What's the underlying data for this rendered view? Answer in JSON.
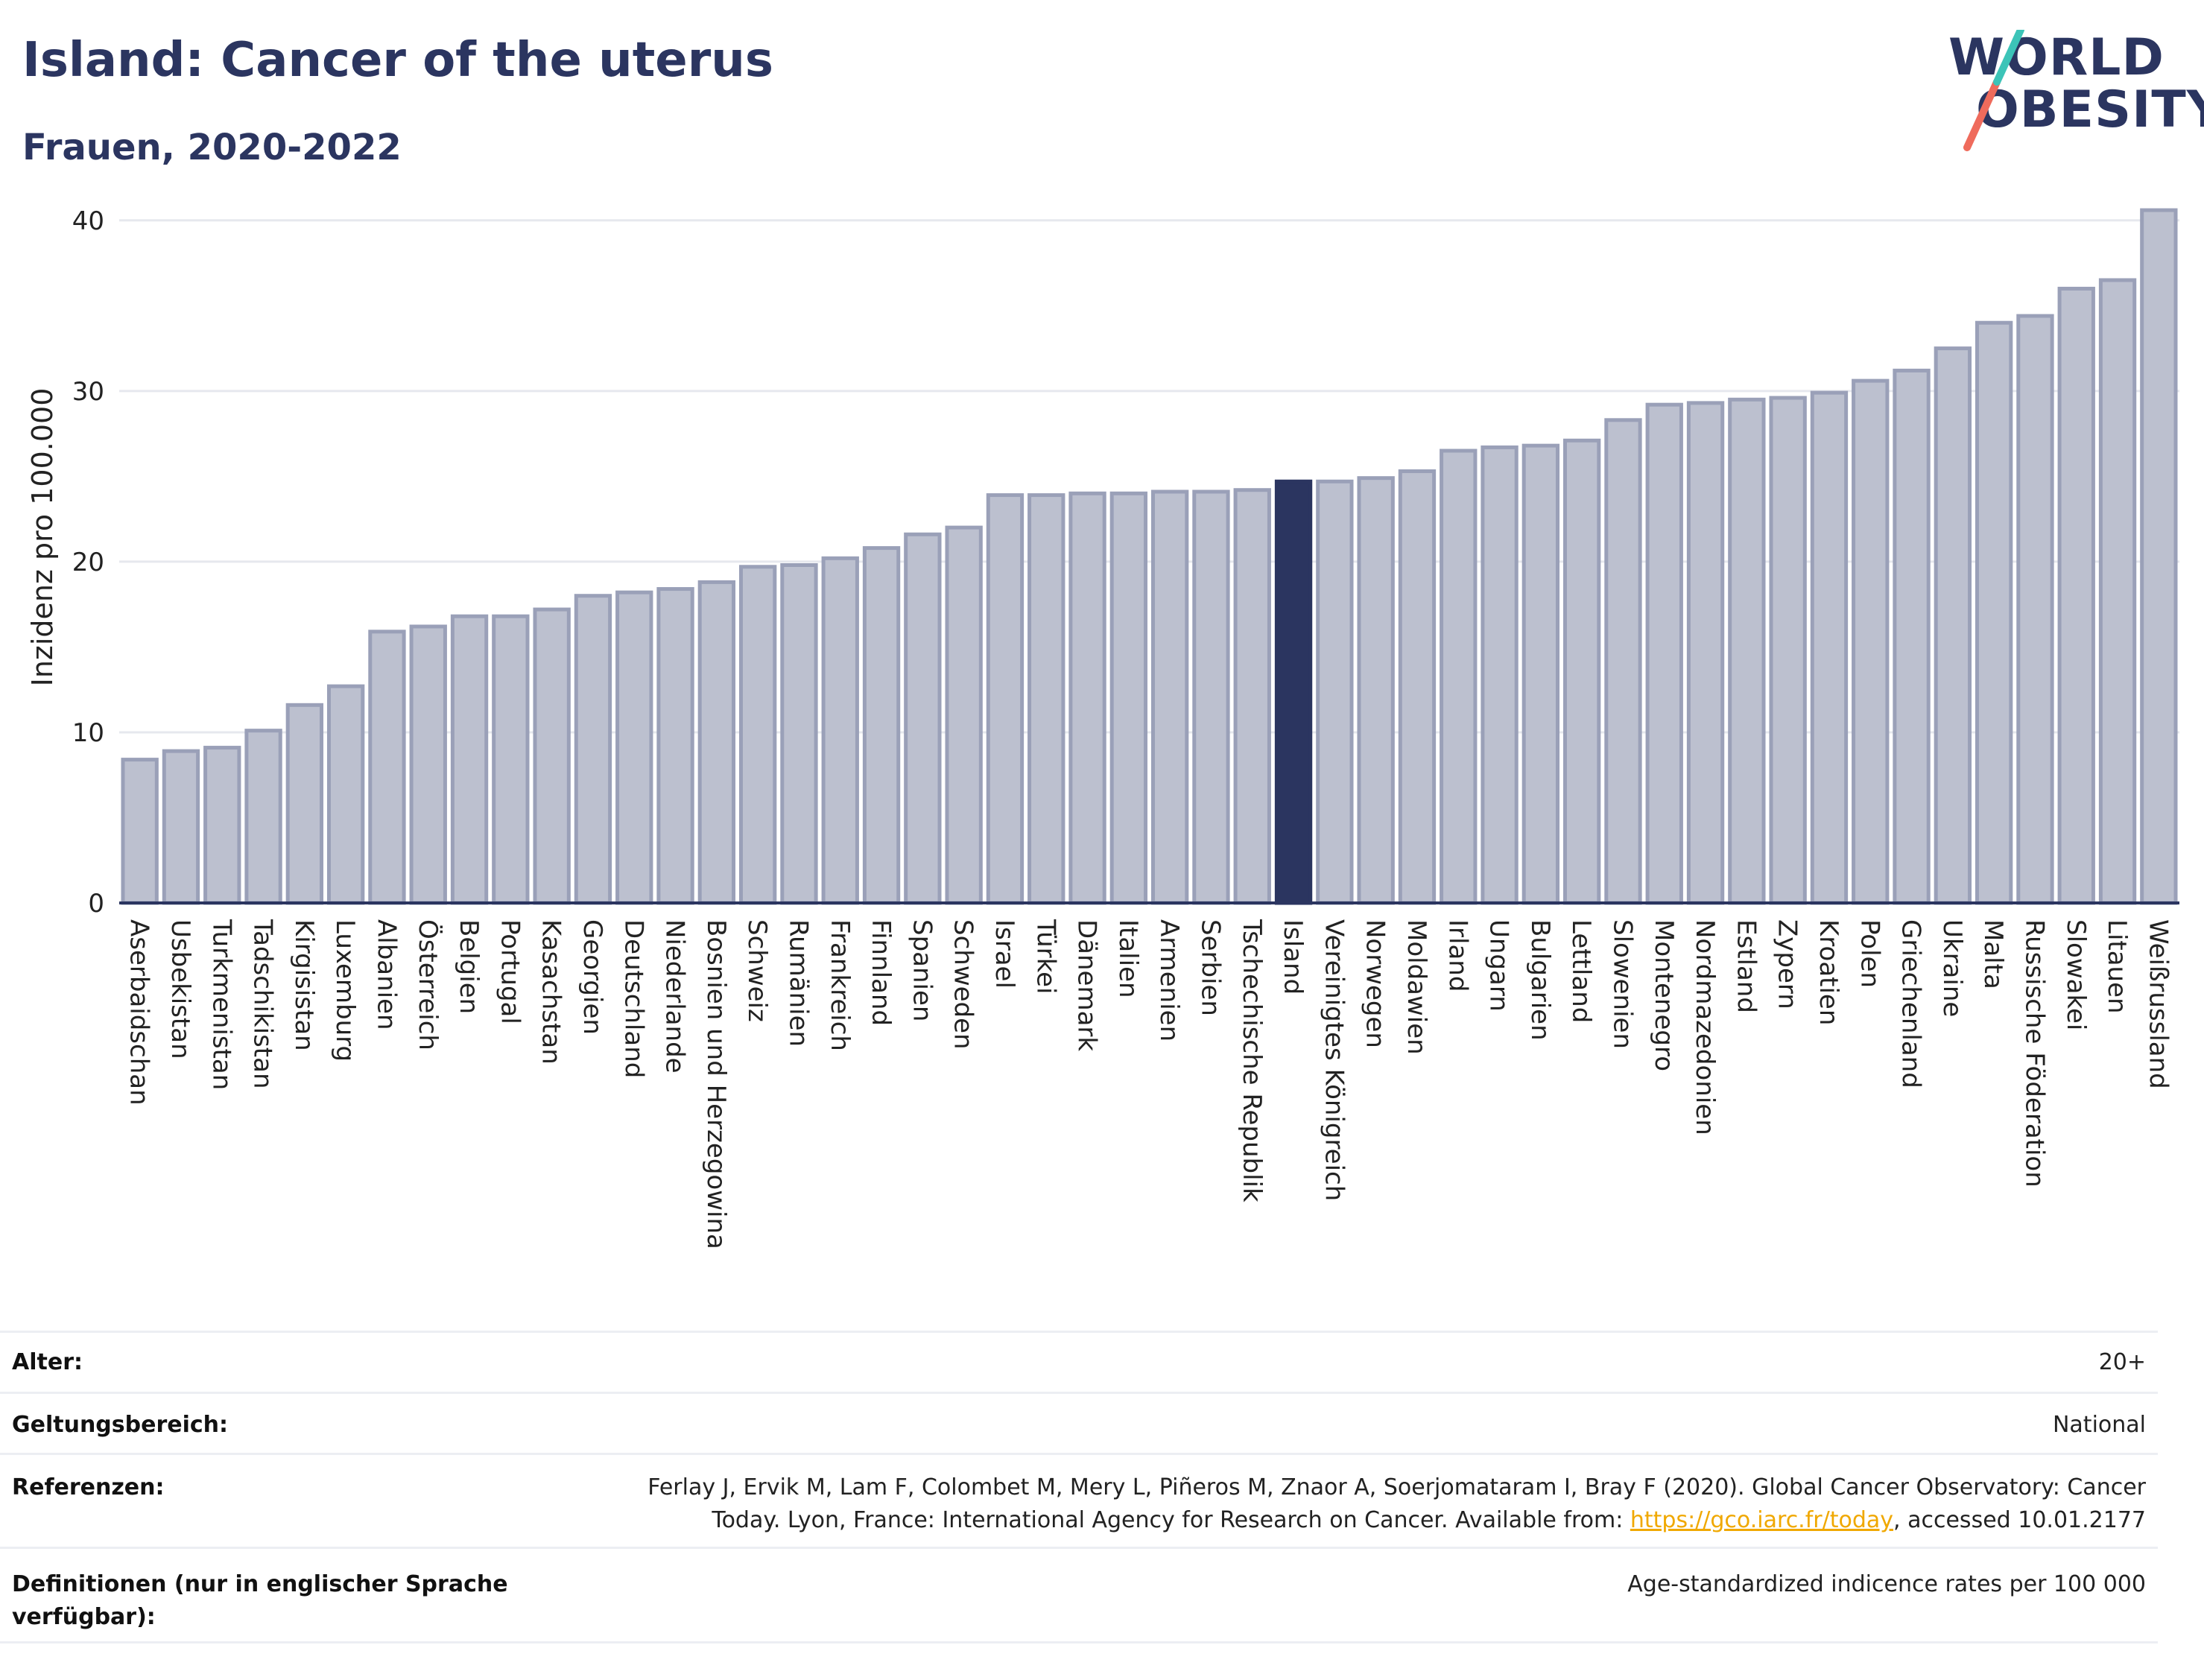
{
  "header": {
    "title": "Island: Cancer of the uterus",
    "subtitle": "Frauen, 2020-2022"
  },
  "logo": {
    "line1": "WORLD",
    "line2": "OBESITY",
    "colors": {
      "navy": "#2b3560",
      "teal": "#3cc4b8",
      "coral": "#ef6b5c"
    }
  },
  "chart_data": {
    "type": "bar",
    "ylabel": "Inzidenz pro 100.000",
    "xlabel": "",
    "ylim": [
      0,
      42
    ],
    "yticks": [
      0,
      10,
      20,
      30,
      40
    ],
    "grid": true,
    "highlight": "Island",
    "colors": {
      "bar": "#bcc0cf",
      "bar_edge": "#9aa0b8",
      "highlight": "#2b3560"
    },
    "categories": [
      "Aserbaidschan",
      "Usbekistan",
      "Turkmenistan",
      "Tadschikistan",
      "Kirgisistan",
      "Luxemburg",
      "Albanien",
      "Österreich",
      "Belgien",
      "Portugal",
      "Kasachstan",
      "Georgien",
      "Deutschland",
      "Niederlande",
      "Bosnien und Herzegowina",
      "Schweiz",
      "Rumänien",
      "Frankreich",
      "Finnland",
      "Spanien",
      "Schweden",
      "Israel",
      "Türkei",
      "Dänemark",
      "Italien",
      "Armenien",
      "Serbien",
      "Tschechische Republik",
      "Island",
      "Vereinigtes Königreich",
      "Norwegen",
      "Moldawien",
      "Irland",
      "Ungarn",
      "Bulgarien",
      "Lettland",
      "Slowenien",
      "Montenegro",
      "Nordmazedonien",
      "Estland",
      "Zypern",
      "Kroatien",
      "Polen",
      "Griechenland",
      "Ukraine",
      "Malta",
      "Russische Föderation",
      "Slowakei",
      "Litauen",
      "Weißrussland"
    ],
    "values": [
      8.4,
      8.9,
      9.1,
      10.1,
      11.6,
      12.7,
      15.9,
      16.2,
      16.8,
      16.8,
      17.2,
      18.0,
      18.2,
      18.4,
      18.8,
      19.7,
      19.8,
      20.2,
      20.8,
      21.6,
      22.0,
      23.9,
      23.9,
      24.0,
      24.0,
      24.1,
      24.1,
      24.2,
      24.7,
      24.7,
      24.9,
      25.3,
      26.5,
      26.7,
      26.8,
      27.1,
      28.3,
      29.2,
      29.3,
      29.5,
      29.6,
      29.9,
      30.6,
      31.2,
      32.5,
      34.0,
      34.4,
      36.0,
      36.5,
      40.6
    ]
  },
  "meta": {
    "rows": [
      {
        "label": "Alter:",
        "value": "20+"
      },
      {
        "label": "Geltungsbereich:",
        "value": "National"
      },
      {
        "label": "Referenzen:",
        "value_line1": "Ferlay J, Ervik M, Lam F, Colombet M, Mery L, Piñeros M, Znaor A, Soerjomataram I, Bray F (2020). Global Cancer Observatory: Cancer",
        "value_line2_pre": "Today. Lyon, France: International Agency for Research on Cancer. Available from: ",
        "link": "https://gco.iarc.fr/today",
        "value_line2_post": ", accessed 10.01.2177"
      },
      {
        "label": "Definitionen (nur in englischer Sprache verfügbar):",
        "value": "Age-standardized indicence rates per 100 000"
      }
    ]
  }
}
